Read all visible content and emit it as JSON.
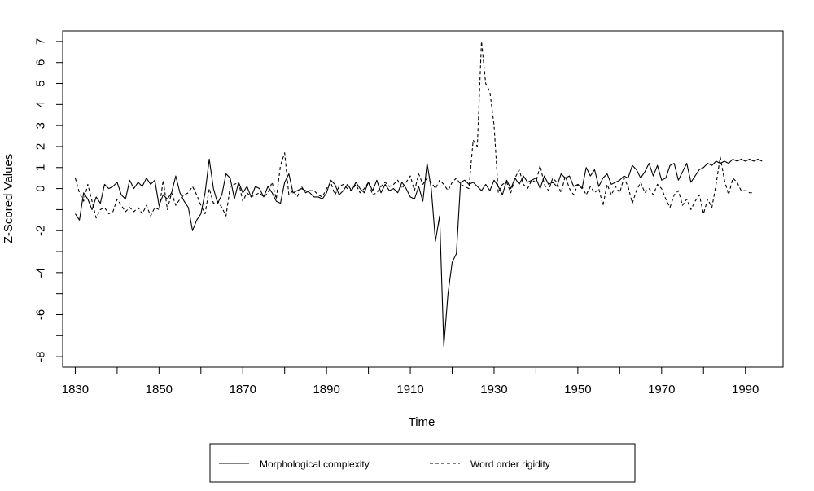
{
  "chart_data": {
    "type": "line",
    "title": "",
    "xlabel": "Time",
    "ylabel": "Z-Scored Values",
    "xlim": [
      1827,
      1999
    ],
    "ylim": [
      -8.5,
      7.5
    ],
    "x_ticks": [
      1830,
      1850,
      1870,
      1890,
      1910,
      1930,
      1950,
      1970,
      1990
    ],
    "x_tick_labels": [
      "1830",
      "1850",
      "1870",
      "1890",
      "1910",
      "1930",
      "1950",
      "1970",
      "1990"
    ],
    "y_ticks": [
      -8,
      -7,
      -6,
      -5,
      -4,
      -3,
      -2,
      -1,
      0,
      1,
      2,
      3,
      4,
      5,
      6,
      7
    ],
    "y_tick_labels": [
      "-8",
      "",
      "-6",
      "",
      "-4",
      "",
      "-2",
      "",
      "0",
      "1",
      "2",
      "3",
      "4",
      "5",
      "6",
      "7"
    ],
    "grid": false,
    "legend_placement": "bottom",
    "series": [
      {
        "name": "Morphological complexity",
        "linestyle": "solid",
        "color": "#000000",
        "x_start": 1830,
        "x_step": 1,
        "values": [
          -1.2,
          -1.5,
          -0.2,
          -0.5,
          -1.0,
          -0.4,
          -0.7,
          0.2,
          0.0,
          0.1,
          0.3,
          -0.3,
          -0.5,
          0.4,
          0.0,
          0.3,
          0.1,
          0.5,
          0.2,
          0.4,
          -0.8,
          -0.3,
          -0.5,
          -0.2,
          0.6,
          -0.2,
          -0.6,
          -0.9,
          -2.0,
          -1.5,
          -1.2,
          -0.2,
          1.4,
          0.0,
          -0.7,
          -0.3,
          0.7,
          0.5,
          -0.5,
          0.3,
          -0.2,
          0.1,
          -0.4,
          0.1,
          0.0,
          -0.4,
          0.1,
          -0.2,
          -0.6,
          -0.7,
          0.3,
          0.7,
          -0.2,
          -0.1,
          0.0,
          -0.1,
          -0.2,
          -0.4,
          -0.4,
          -0.5,
          -0.2,
          0.4,
          0.2,
          -0.3,
          -0.1,
          0.2,
          -0.1,
          0.3,
          0.0,
          -0.2,
          0.3,
          -0.1,
          0.4,
          -0.2,
          0.2,
          -0.1,
          0.0,
          -0.2,
          0.3,
          0.0,
          -0.4,
          -0.5,
          0.1,
          -0.6,
          1.2,
          0.0,
          -2.5,
          -1.3,
          -7.5,
          -5.0,
          -3.5,
          -3.1,
          0.3,
          0.4,
          0.2,
          0.3,
          0.1,
          -0.1,
          0.2,
          -0.1,
          0.4,
          0.1,
          -0.3,
          0.4,
          0.0,
          0.5,
          0.2,
          0.6,
          0.3,
          0.4,
          0.5,
          0.0,
          0.6,
          0.2,
          0.3,
          0.1,
          0.7,
          0.5,
          0.6,
          0.1,
          0.2,
          0.0,
          1.0,
          0.6,
          0.9,
          0.1,
          0.5,
          0.7,
          0.2,
          0.3,
          0.4,
          0.6,
          0.5,
          1.1,
          0.9,
          0.5,
          0.8,
          1.2,
          0.6,
          1.1,
          0.4,
          0.5,
          1.1,
          1.2,
          0.4,
          0.8,
          1.2,
          0.3,
          0.6,
          0.9,
          1.0,
          1.2,
          1.1,
          1.3,
          1.2,
          1.3,
          1.2,
          1.4,
          1.3,
          1.4,
          1.3,
          1.4,
          1.3,
          1.4,
          1.3
        ]
      },
      {
        "name": "Word order rigidity",
        "linestyle": "dashed",
        "color": "#000000",
        "x_start": 1830,
        "x_step": 1,
        "values": [
          0.5,
          -0.2,
          -0.6,
          0.2,
          -0.6,
          -1.4,
          -1.0,
          -0.9,
          -1.2,
          -1.1,
          -0.5,
          -0.8,
          -1.1,
          -0.9,
          -1.1,
          -0.9,
          -1.2,
          -0.8,
          -1.3,
          -0.9,
          -1.0,
          0.4,
          -1.0,
          -0.2,
          -0.8,
          -0.5,
          -0.3,
          -0.2,
          0.1,
          -0.3,
          -0.8,
          -1.2,
          0.0,
          -0.7,
          -0.6,
          -0.9,
          -1.3,
          0.1,
          0.2,
          0.3,
          -0.6,
          -0.2,
          -0.4,
          -0.3,
          -0.2,
          -0.4,
          -0.2,
          0.3,
          -0.5,
          1.1,
          1.7,
          -0.3,
          -0.1,
          -0.4,
          0.1,
          -0.2,
          -0.1,
          -0.1,
          -0.3,
          -0.4,
          0.0,
          0.3,
          -0.3,
          0.1,
          0.2,
          0.0,
          -0.1,
          0.2,
          -0.2,
          0.0,
          0.3,
          -0.3,
          -0.2,
          0.1,
          0.3,
          0.1,
          0.2,
          0.4,
          0.0,
          0.3,
          0.6,
          -0.1,
          0.7,
          0.2,
          0.5,
          0.3,
          0.0,
          0.4,
          0.2,
          -0.1,
          0.3,
          0.5,
          0.2,
          0.1,
          0.0,
          2.3,
          2.0,
          7.0,
          5.0,
          4.6,
          3.0,
          -0.2,
          0.2,
          0.3,
          -0.2,
          0.5,
          0.9,
          0.2,
          0.0,
          0.4,
          0.3,
          1.1,
          0.2,
          -0.1,
          0.5,
          0.3,
          -0.2,
          0.6,
          0.0,
          -0.3,
          0.2,
          0.1,
          -0.3,
          0.1,
          -0.2,
          0.0,
          -0.8,
          0.2,
          -0.3,
          0.1,
          -0.2,
          0.5,
          0.1,
          -0.7,
          -0.1,
          0.3,
          -0.2,
          0.0,
          -0.3,
          0.2,
          0.0,
          -0.5,
          -0.9,
          -0.3,
          -0.1,
          -0.8,
          -0.5,
          -1.0,
          -0.6,
          -0.3,
          -1.2,
          -0.5,
          -0.9,
          0.2,
          1.5,
          0.4,
          -0.3,
          0.5,
          0.3,
          -0.1,
          -0.1,
          -0.2,
          -0.2
        ]
      }
    ]
  }
}
